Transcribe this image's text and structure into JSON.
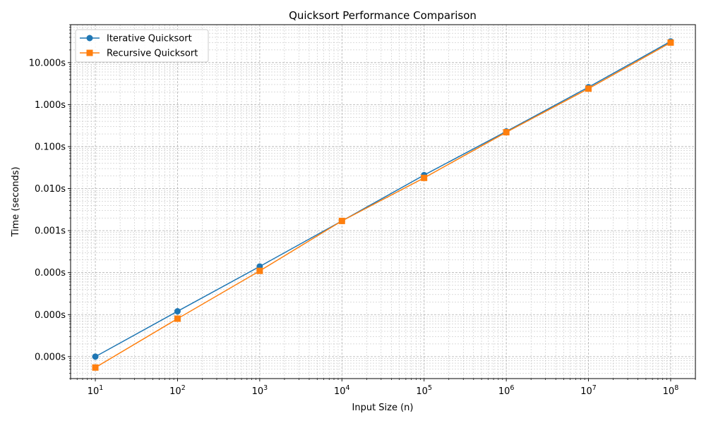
{
  "chart_data": {
    "type": "line",
    "title": "Quicksort Performance Comparison",
    "xlabel": "Input Size (n)",
    "ylabel": "Time (seconds)",
    "x_scale": "log",
    "y_scale": "log",
    "xlim": [
      5,
      200000000
    ],
    "ylim": [
      3e-07,
      80
    ],
    "x": [
      10,
      100,
      1000,
      10000,
      100000,
      1000000,
      10000000,
      100000000
    ],
    "x_ticks": [
      {
        "value": 10,
        "base": "10",
        "exp": "1"
      },
      {
        "value": 100,
        "base": "10",
        "exp": "2"
      },
      {
        "value": 1000,
        "base": "10",
        "exp": "3"
      },
      {
        "value": 10000,
        "base": "10",
        "exp": "4"
      },
      {
        "value": 100000,
        "base": "10",
        "exp": "5"
      },
      {
        "value": 1000000,
        "base": "10",
        "exp": "6"
      },
      {
        "value": 10000000,
        "base": "10",
        "exp": "7"
      },
      {
        "value": 100000000,
        "base": "10",
        "exp": "8"
      }
    ],
    "y_ticks": [
      {
        "value": 1e-06,
        "label": "0.000s"
      },
      {
        "value": 1e-05,
        "label": "0.000s"
      },
      {
        "value": 0.0001,
        "label": "0.000s"
      },
      {
        "value": 0.001,
        "label": "0.001s"
      },
      {
        "value": 0.01,
        "label": "0.010s"
      },
      {
        "value": 0.1,
        "label": "0.100s"
      },
      {
        "value": 1,
        "label": "1.000s"
      },
      {
        "value": 10,
        "label": "10.000s"
      }
    ],
    "grid": true,
    "legend_position": "top-left",
    "series": [
      {
        "name": "Iterative Quicksort",
        "color": "#1f77b4",
        "marker": "circle",
        "values": [
          1e-06,
          1.2e-05,
          0.00014,
          0.0017,
          0.021,
          0.23,
          2.6,
          32
        ]
      },
      {
        "name": "Recursive Quicksort",
        "color": "#ff7f0e",
        "marker": "square",
        "values": [
          5.5e-07,
          8e-06,
          0.00011,
          0.0017,
          0.018,
          0.22,
          2.4,
          30
        ]
      }
    ]
  }
}
